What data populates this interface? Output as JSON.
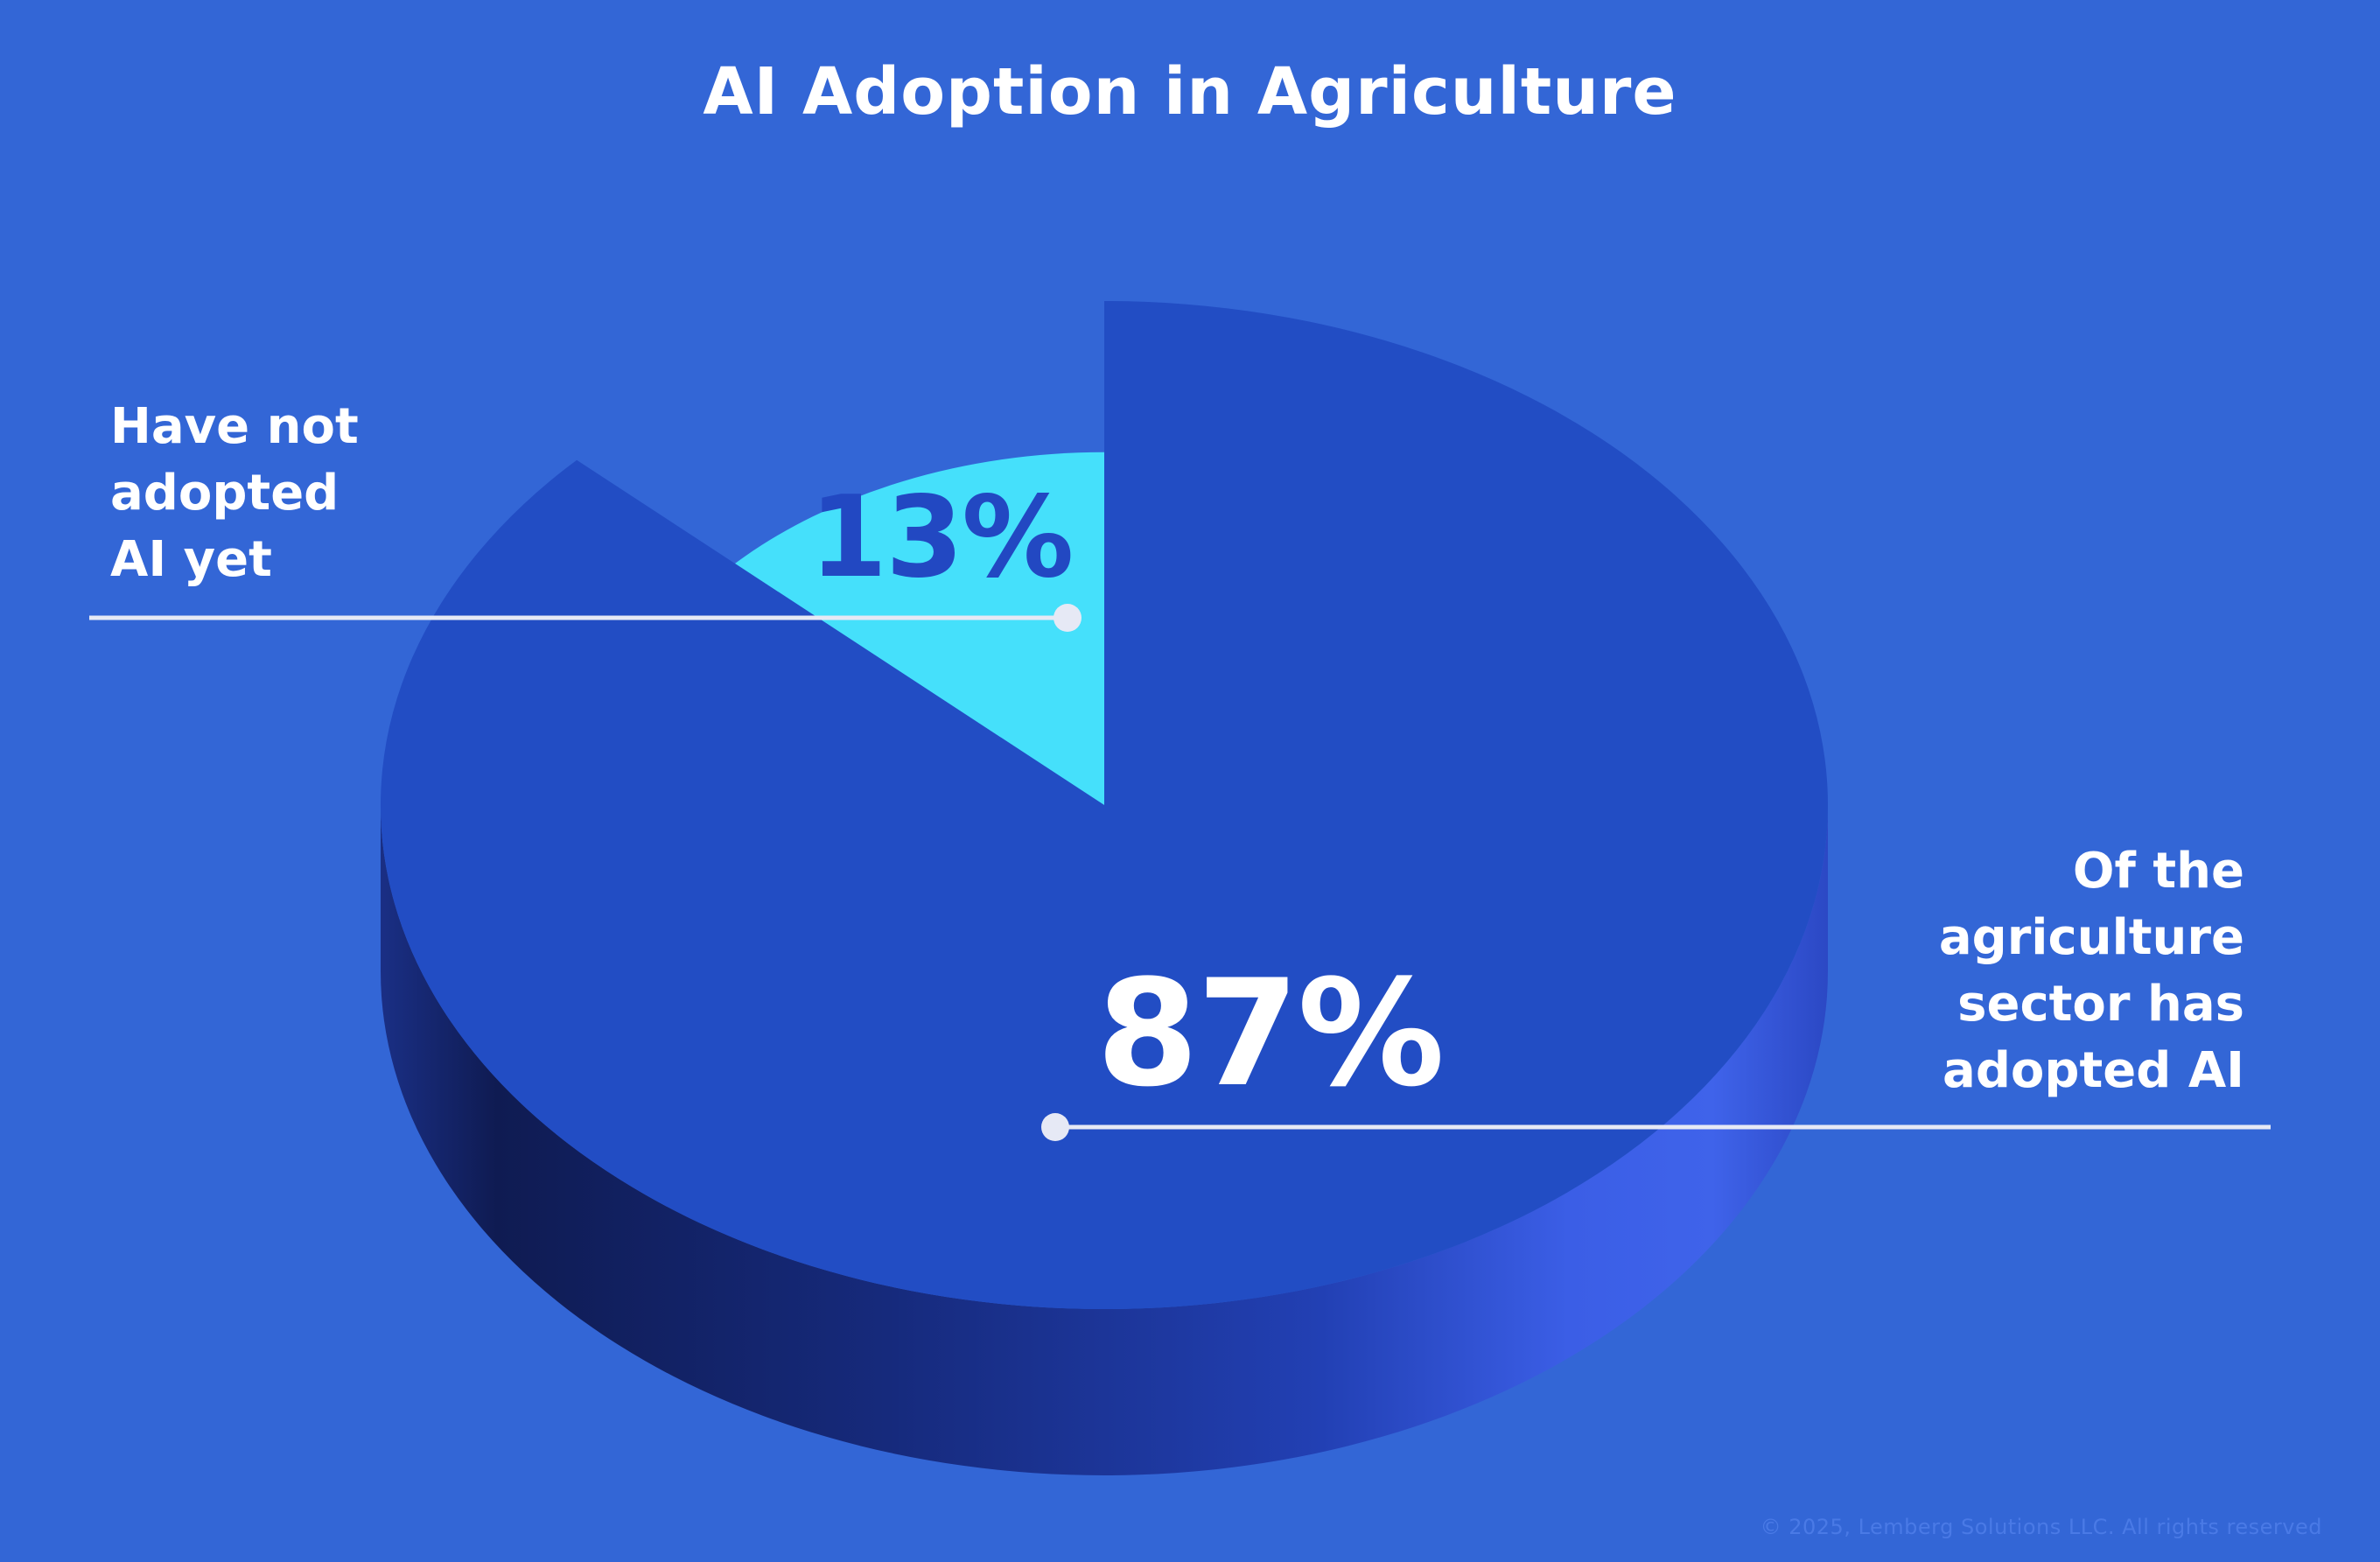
{
  "title": "AI Adoption in Agriculture",
  "chart_data": {
    "type": "pie",
    "style": "3d",
    "slices": [
      {
        "value": 13,
        "value_label": "13%",
        "label_lines": [
          "Have not",
          "adopted",
          "AI yet"
        ],
        "color": "#45e0fb"
      },
      {
        "value": 87,
        "value_label": "87%",
        "label_lines": [
          "Of the",
          "agriculture",
          "sector has",
          "adopted AI"
        ],
        "color": "#224dc4"
      }
    ]
  },
  "colors": {
    "background": "#3366d6",
    "leader_line": "#e6e9f5"
  },
  "footer": {
    "copyright": "© 2025, Lemberg Solutions LLC. All rights reserved"
  }
}
